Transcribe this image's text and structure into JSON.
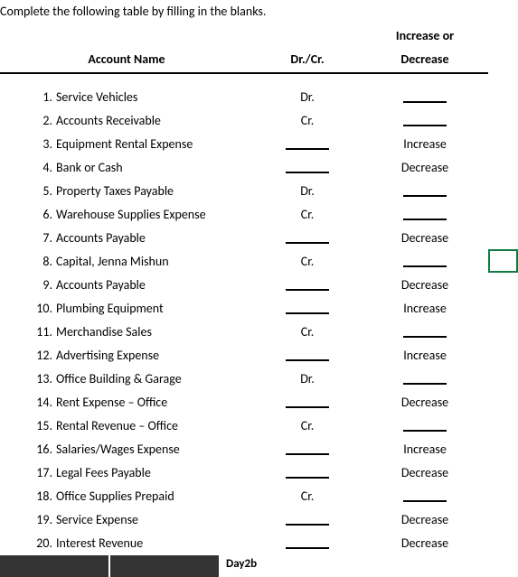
{
  "instruction": "Complete the following table by filling in the blanks.",
  "headers": {
    "account": "Account Name",
    "drcr": "Dr./Cr.",
    "incdec_top": "Increase or",
    "incdec_bottom": "Decrease"
  },
  "rows": [
    {
      "n": "1.",
      "name": "Service Vehicles",
      "drcr": "Dr.",
      "incdec": ""
    },
    {
      "n": "2.",
      "name": "Accounts Receivable",
      "drcr": "Cr.",
      "incdec": ""
    },
    {
      "n": "3.",
      "name": "Equipment Rental Expense",
      "drcr": "",
      "incdec": "Increase"
    },
    {
      "n": "4.",
      "name": "Bank or Cash",
      "drcr": "",
      "incdec": "Decrease"
    },
    {
      "n": "5.",
      "name": "Property Taxes Payable",
      "drcr": "Dr.",
      "incdec": ""
    },
    {
      "n": "6.",
      "name": "Warehouse Supplies Expense",
      "drcr": "Cr.",
      "incdec": ""
    },
    {
      "n": "7.",
      "name": "Accounts Payable",
      "drcr": "",
      "incdec": "Decrease"
    },
    {
      "n": "8.",
      "name": "Capital, Jenna Mishun",
      "drcr": "Cr.",
      "incdec": ""
    },
    {
      "n": "9.",
      "name": "Accounts Payable",
      "drcr": "",
      "incdec": "Decrease"
    },
    {
      "n": "10.",
      "name": "Plumbing Equipment",
      "drcr": "",
      "incdec": "Increase"
    },
    {
      "n": "11.",
      "name": "Merchandise Sales",
      "drcr": "Cr.",
      "incdec": ""
    },
    {
      "n": "12.",
      "name": "Advertising Expense",
      "drcr": "",
      "incdec": "Increase"
    },
    {
      "n": "13.",
      "name": "Office Building & Garage",
      "drcr": "Dr.",
      "incdec": ""
    },
    {
      "n": "14.",
      "name": "Rent Expense – Office",
      "drcr": "",
      "incdec": "Decrease"
    },
    {
      "n": "15.",
      "name": "Rental Revenue – Office",
      "drcr": "Cr.",
      "incdec": ""
    },
    {
      "n": "16.",
      "name": "Salaries/Wages Expense",
      "drcr": "",
      "incdec": "Increase"
    },
    {
      "n": "17.",
      "name": "Legal Fees Payable",
      "drcr": "",
      "incdec": "Decrease"
    },
    {
      "n": "18.",
      "name": "Office Supplies Prepaid",
      "drcr": "Cr.",
      "incdec": ""
    },
    {
      "n": "19.",
      "name": "Service Expense",
      "drcr": "",
      "incdec": "Decrease"
    },
    {
      "n": "20.",
      "name": "Interest Revenue",
      "drcr": "",
      "incdec": "Decrease"
    }
  ],
  "selected_row_index": 7,
  "tab_fragment": "Day2b",
  "colors": {
    "selection_border": "#107c41",
    "header_underline": "#000000",
    "blank_underline": "#000000",
    "tab_dark": "#333333"
  },
  "font": {
    "family": "Calibri",
    "size_pt": 11
  }
}
